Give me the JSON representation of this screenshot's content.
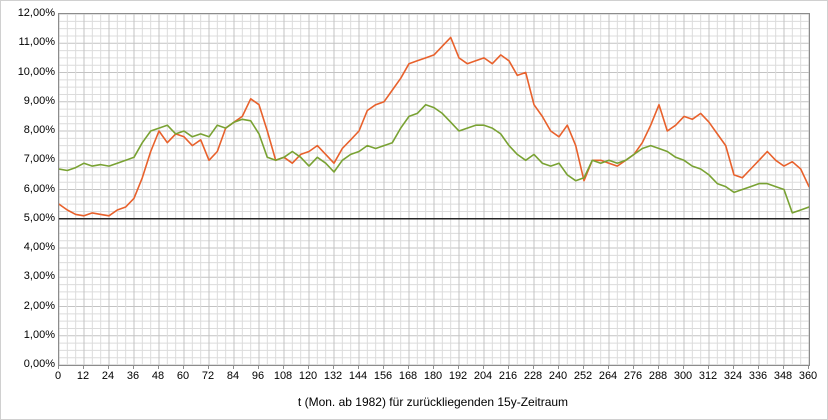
{
  "chart_data": {
    "type": "line",
    "title": "",
    "xlabel": "t (Mon. ab 1982) für zurückliegenden 15y-Zeitraum",
    "ylabel": "",
    "xlim": [
      0,
      360
    ],
    "ylim": [
      0,
      12
    ],
    "x_start": 0,
    "x_step": 4,
    "x_major_interval": 12,
    "x_minor_interval": 4,
    "y_major_interval": 1,
    "y_minor_interval": 0.25,
    "grid": true,
    "legend_position": "none",
    "y_tick_labels": [
      "0,00%",
      "1,00%",
      "2,00%",
      "3,00%",
      "4,00%",
      "5,00%",
      "6,00%",
      "7,00%",
      "8,00%",
      "9,00%",
      "10,00%",
      "11,00%",
      "12,00%"
    ],
    "x_tick_labels": [
      "0",
      "12",
      "24",
      "36",
      "48",
      "60",
      "72",
      "84",
      "96",
      "108",
      "120",
      "132",
      "144",
      "156",
      "168",
      "180",
      "192",
      "204",
      "216",
      "228",
      "240",
      "252",
      "264",
      "276",
      "288",
      "300",
      "312",
      "324",
      "336",
      "348",
      "360"
    ],
    "reference_line": {
      "y": 5,
      "color": "#262626"
    },
    "colors": {
      "grid_minor": "#dcdcdc",
      "grid_major": "#c3c3c3",
      "plot_border": "#8c8c8c",
      "series_orange": "#e8612c",
      "series_green": "#79a233"
    },
    "series": [
      {
        "name": "series-orange",
        "color": "#e8612c",
        "values": [
          5.5,
          5.3,
          5.15,
          5.1,
          5.2,
          5.15,
          5.1,
          5.3,
          5.4,
          5.7,
          6.4,
          7.3,
          8.0,
          7.6,
          7.9,
          7.8,
          7.5,
          7.7,
          7.0,
          7.3,
          8.1,
          8.3,
          8.5,
          9.1,
          8.9,
          8.0,
          7.0,
          7.1,
          6.9,
          7.2,
          7.3,
          7.5,
          7.2,
          6.9,
          7.4,
          7.7,
          8.0,
          8.7,
          8.9,
          9.0,
          9.4,
          9.8,
          10.3,
          10.4,
          10.5,
          10.6,
          10.9,
          11.2,
          10.5,
          10.3,
          10.4,
          10.5,
          10.3,
          10.6,
          10.4,
          9.9,
          10.0,
          8.9,
          8.5,
          8.0,
          7.8,
          8.2,
          7.5,
          6.3,
          7.0,
          7.0,
          6.9,
          6.8,
          7.0,
          7.2,
          7.6,
          8.2,
          8.9,
          8.0,
          8.2,
          8.5,
          8.4,
          8.6,
          8.3,
          7.9,
          7.5,
          6.5,
          6.4,
          6.7,
          7.0,
          7.3,
          7.0,
          6.8,
          6.95,
          6.7,
          6.1
        ]
      },
      {
        "name": "series-green",
        "color": "#79a233",
        "values": [
          6.7,
          6.65,
          6.75,
          6.9,
          6.8,
          6.85,
          6.8,
          6.9,
          7.0,
          7.1,
          7.6,
          8.0,
          8.1,
          8.2,
          7.9,
          8.0,
          7.8,
          7.9,
          7.8,
          8.2,
          8.1,
          8.3,
          8.4,
          8.35,
          7.9,
          7.1,
          7.0,
          7.1,
          7.3,
          7.1,
          6.8,
          7.1,
          6.9,
          6.6,
          7.0,
          7.2,
          7.3,
          7.5,
          7.4,
          7.5,
          7.6,
          8.1,
          8.5,
          8.6,
          8.9,
          8.8,
          8.6,
          8.3,
          8.0,
          8.1,
          8.2,
          8.2,
          8.1,
          7.9,
          7.5,
          7.2,
          7.0,
          7.2,
          6.9,
          6.8,
          6.9,
          6.5,
          6.3,
          6.4,
          7.0,
          6.9,
          7.0,
          6.9,
          7.0,
          7.2,
          7.4,
          7.5,
          7.4,
          7.3,
          7.1,
          7.0,
          6.8,
          6.7,
          6.5,
          6.2,
          6.1,
          5.9,
          6.0,
          6.1,
          6.2,
          6.2,
          6.1,
          6.0,
          5.2,
          5.3,
          5.4
        ]
      }
    ]
  }
}
